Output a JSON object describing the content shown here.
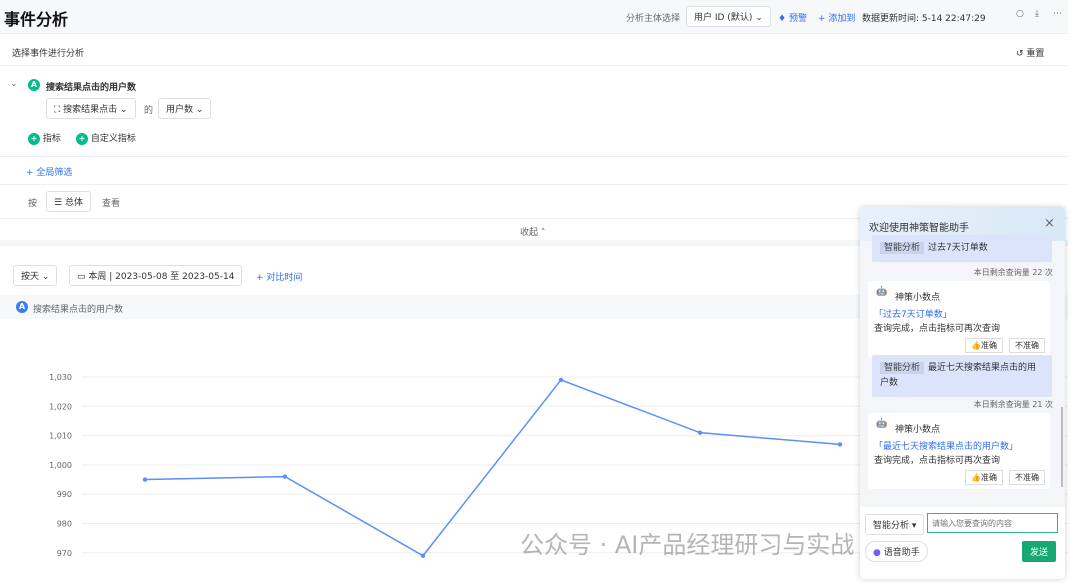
{
  "header": {
    "title": "事件分析",
    "subject_label": "分析主体选择",
    "subject_value": "用户 ID (默认)",
    "alert": "预警",
    "add_to": "添加到",
    "updated": "数据更新时间: 5-14 22:47:29"
  },
  "query": {
    "section_title": "选择事件进行分析",
    "reset": "重置",
    "metric_badge": "A",
    "metric_name": "搜索结果点击的用户数",
    "event": "搜索结果点击",
    "of": "的",
    "measure": "用户数",
    "add_metric": "指标",
    "add_custom": "自定义指标",
    "global_filter": "全局筛选",
    "by": "按",
    "group": "总体",
    "view": "查看",
    "collapse": "收起"
  },
  "controls": {
    "granularity": "按天",
    "date_range": "本周 | 2023-05-08 至 2023-05-14",
    "compare": "对比时间",
    "legend_badge": "A",
    "legend": "搜索结果点击的用户数"
  },
  "chart_data": {
    "type": "line",
    "series": [
      {
        "name": "搜索结果点击的用户数",
        "values": [
          995,
          996,
          969,
          1029,
          1011,
          1007
        ]
      }
    ],
    "yticks": [
      "970",
      "980",
      "990",
      "1,000",
      "1,010",
      "1,020",
      "1,030"
    ],
    "ylim": [
      965,
      1035
    ],
    "grid": true,
    "color": "#5b8ff9"
  },
  "assistant": {
    "title": "欢迎使用神策智能助手",
    "messages": [
      {
        "tag": "智能分析",
        "text": "过去7天订单数",
        "quota": "本日剩余查询量 22 次",
        "bot": "神策小数点",
        "link": "「过去7天订单数」",
        "result": "查询完成，点击指标可再次查询",
        "good": "👍准确",
        "bad": "不准确"
      },
      {
        "tag": "智能分析",
        "text": "最近七天搜索结果点击的用户数",
        "quota": "本日剩余查询量 21 次",
        "bot": "神策小数点",
        "link": "「最近七天搜索结果点击的用户数」",
        "result": "查询完成，点击指标可再次查询",
        "good": "👍准确",
        "bad": "不准确"
      }
    ],
    "mode": "智能分析",
    "placeholder": "请输入您要查询的内容",
    "voice": "语音助手",
    "send": "发送"
  },
  "watermark": "公众号 · AI产品经理研习与实战"
}
